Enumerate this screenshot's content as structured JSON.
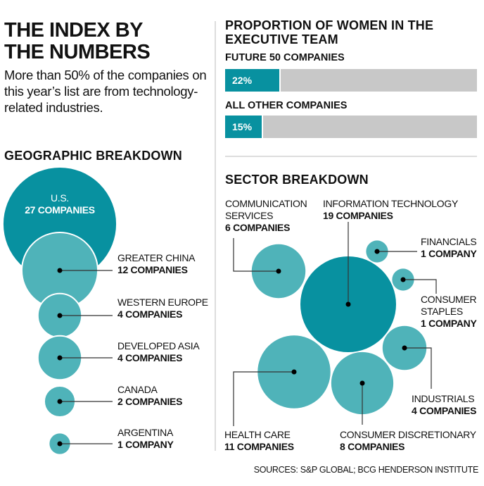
{
  "header": {
    "title_line1": "THE INDEX BY",
    "title_line2": "THE NUMBERS",
    "intro": "More than 50% of the companies on this year’s list are from technology-related industries."
  },
  "women": {
    "title_line1": "PROPORTION OF WOMEN IN THE",
    "title_line2": "EXECUTIVE TEAM",
    "bars": [
      {
        "label": "FUTURE 50 COMPANIES",
        "value": 22,
        "text": "22%"
      },
      {
        "label": "ALL OTHER COMPANIES",
        "value": 15,
        "text": "15%"
      }
    ]
  },
  "colors": {
    "primary": "#0891a0",
    "secondary": "#4fb3b9",
    "bar_bg": "#c8c8c8"
  },
  "chart_data": [
    {
      "type": "bubble",
      "title": "GEOGRAPHIC BREAKDOWN",
      "unit": "companies",
      "items": [
        {
          "name": "U.S.",
          "value": 27,
          "count_label": "27 COMPANIES"
        },
        {
          "name": "GREATER CHINA",
          "value": 12,
          "count_label": "12 COMPANIES"
        },
        {
          "name": "WESTERN EUROPE",
          "value": 4,
          "count_label": "4 COMPANIES"
        },
        {
          "name": "DEVELOPED ASIA",
          "value": 4,
          "count_label": "4 COMPANIES"
        },
        {
          "name": "CANADA",
          "value": 2,
          "count_label": "2 COMPANIES"
        },
        {
          "name": "ARGENTINA",
          "value": 1,
          "count_label": "1 COMPANY"
        }
      ]
    },
    {
      "type": "bubble",
      "title": "SECTOR BREAKDOWN",
      "unit": "companies",
      "items": [
        {
          "name": "COMMUNICATION SERVICES",
          "name_line1": "COMMUNICATION",
          "name_line2": "SERVICES",
          "value": 6,
          "count_label": "6 COMPANIES"
        },
        {
          "name": "INFORMATION TECHNOLOGY",
          "value": 19,
          "count_label": "19 COMPANIES"
        },
        {
          "name": "FINANCIALS",
          "value": 1,
          "count_label": "1 COMPANY"
        },
        {
          "name": "CONSUMER STAPLES",
          "name_line1": "CONSUMER",
          "name_line2": "STAPLES",
          "value": 1,
          "count_label": "1 COMPANY"
        },
        {
          "name": "INDUSTRIALS",
          "value": 4,
          "count_label": "4 COMPANIES"
        },
        {
          "name": "HEALTH CARE",
          "value": 11,
          "count_label": "11 COMPANIES"
        },
        {
          "name": "CONSUMER DISCRETIONARY",
          "value": 8,
          "count_label": "8 COMPANIES"
        }
      ]
    }
  ],
  "footer": {
    "sources": "SOURCES: S&P GLOBAL; BCG HENDERSON INSTITUTE"
  }
}
